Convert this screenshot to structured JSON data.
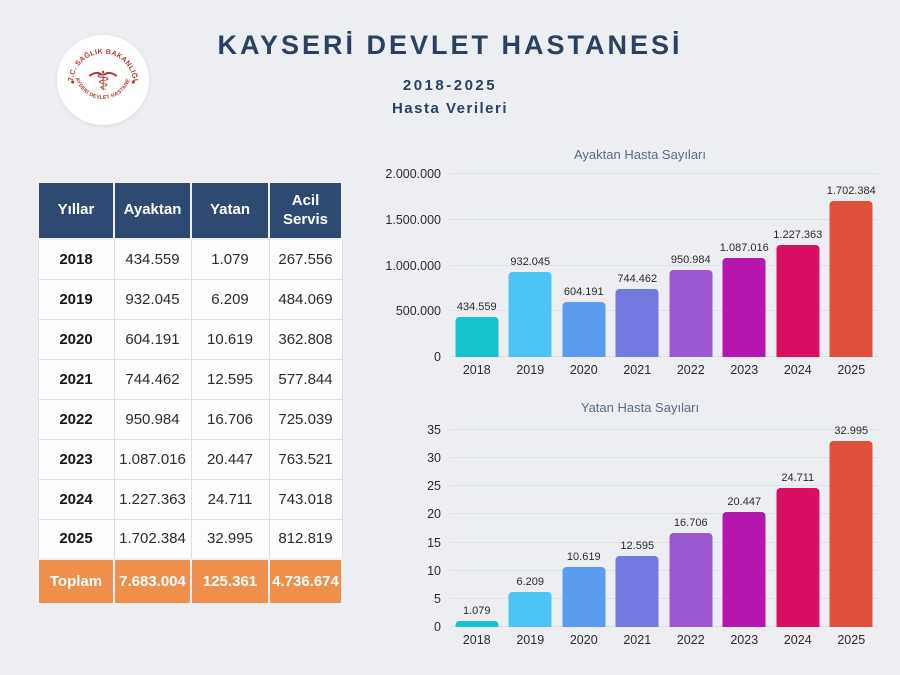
{
  "colors": {
    "background": "#eceef2",
    "title_navy": "#2c4160",
    "table_header_bg": "#2e4a72",
    "total_row_bg": "#ef8f4c",
    "logo_red": "#b03a33",
    "chart_title_gray": "#5c6c81"
  },
  "header": {
    "title": "KAYSERİ DEVLET HASTANESİ",
    "subtitle": "2018-2025",
    "subtitle2": "Hasta Verileri",
    "logo": {
      "top_text": "T.C. SAĞLIK BAKANLIĞI",
      "bottom_text": "KAYSERİ DEVLET HASTANESİ",
      "symbol": "caduceus"
    }
  },
  "table": {
    "headers": [
      "Yıllar",
      "Ayaktan",
      "Yatan",
      "Acil Servis"
    ],
    "rows": [
      [
        "2018",
        "434.559",
        "1.079",
        "267.556"
      ],
      [
        "2019",
        "932.045",
        "6.209",
        "484.069"
      ],
      [
        "2020",
        "604.191",
        "10.619",
        "362.808"
      ],
      [
        "2021",
        "744.462",
        "12.595",
        "577.844"
      ],
      [
        "2022",
        "950.984",
        "16.706",
        "725.039"
      ],
      [
        "2023",
        "1.087.016",
        "20.447",
        "763.521"
      ],
      [
        "2024",
        "1.227.363",
        "24.711",
        "743.018"
      ],
      [
        "2025",
        "1.702.384",
        "32.995",
        "812.819"
      ]
    ],
    "total_row": [
      "Toplam",
      "7.683.004",
      "125.361",
      "4.736.674"
    ]
  },
  "chart_data": [
    {
      "type": "bar",
      "title": "Ayaktan Hasta Sayıları",
      "categories": [
        "2018",
        "2019",
        "2020",
        "2021",
        "2022",
        "2023",
        "2024",
        "2025"
      ],
      "values": [
        434559,
        932045,
        604191,
        744462,
        950984,
        1087016,
        1227363,
        1702384
      ],
      "value_labels": [
        "434.559",
        "932.045",
        "604.191",
        "744.462",
        "950.984",
        "1.087.016",
        "1.227.363",
        "1.702.384"
      ],
      "ylim": [
        0,
        2000000
      ],
      "yticks": [
        0,
        500000,
        1000000,
        1500000,
        2000000
      ],
      "ytick_labels": [
        "0",
        "500.000",
        "1.000.000",
        "1.500.000",
        "2.000.000"
      ],
      "bar_colors": [
        "#17c3cd",
        "#4cc3f2",
        "#5b9cee",
        "#7478e1",
        "#9a58d1",
        "#b416ae",
        "#d90f63",
        "#e0503d"
      ],
      "grid": true,
      "legend": false
    },
    {
      "type": "bar",
      "title": "Yatan Hasta Sayıları",
      "categories": [
        "2018",
        "2019",
        "2020",
        "2021",
        "2022",
        "2023",
        "2024",
        "2025"
      ],
      "values": [
        1.079,
        6.209,
        10.619,
        12.595,
        16.706,
        20.447,
        24.711,
        32.995
      ],
      "value_labels": [
        "1.079",
        "6.209",
        "10.619",
        "12.595",
        "16.706",
        "20.447",
        "24.711",
        "32.995"
      ],
      "axis_unit": "thousands",
      "ylim": [
        0,
        35
      ],
      "yticks": [
        0,
        5,
        10,
        15,
        20,
        25,
        30,
        35
      ],
      "ytick_labels": [
        "0",
        "5",
        "10",
        "15",
        "20",
        "25",
        "30",
        "35"
      ],
      "bar_colors": [
        "#17c3cd",
        "#4cc3f2",
        "#5b9cee",
        "#7478e1",
        "#9a58d1",
        "#b416ae",
        "#d90f63",
        "#e0503d"
      ],
      "grid": true,
      "legend": false
    }
  ]
}
